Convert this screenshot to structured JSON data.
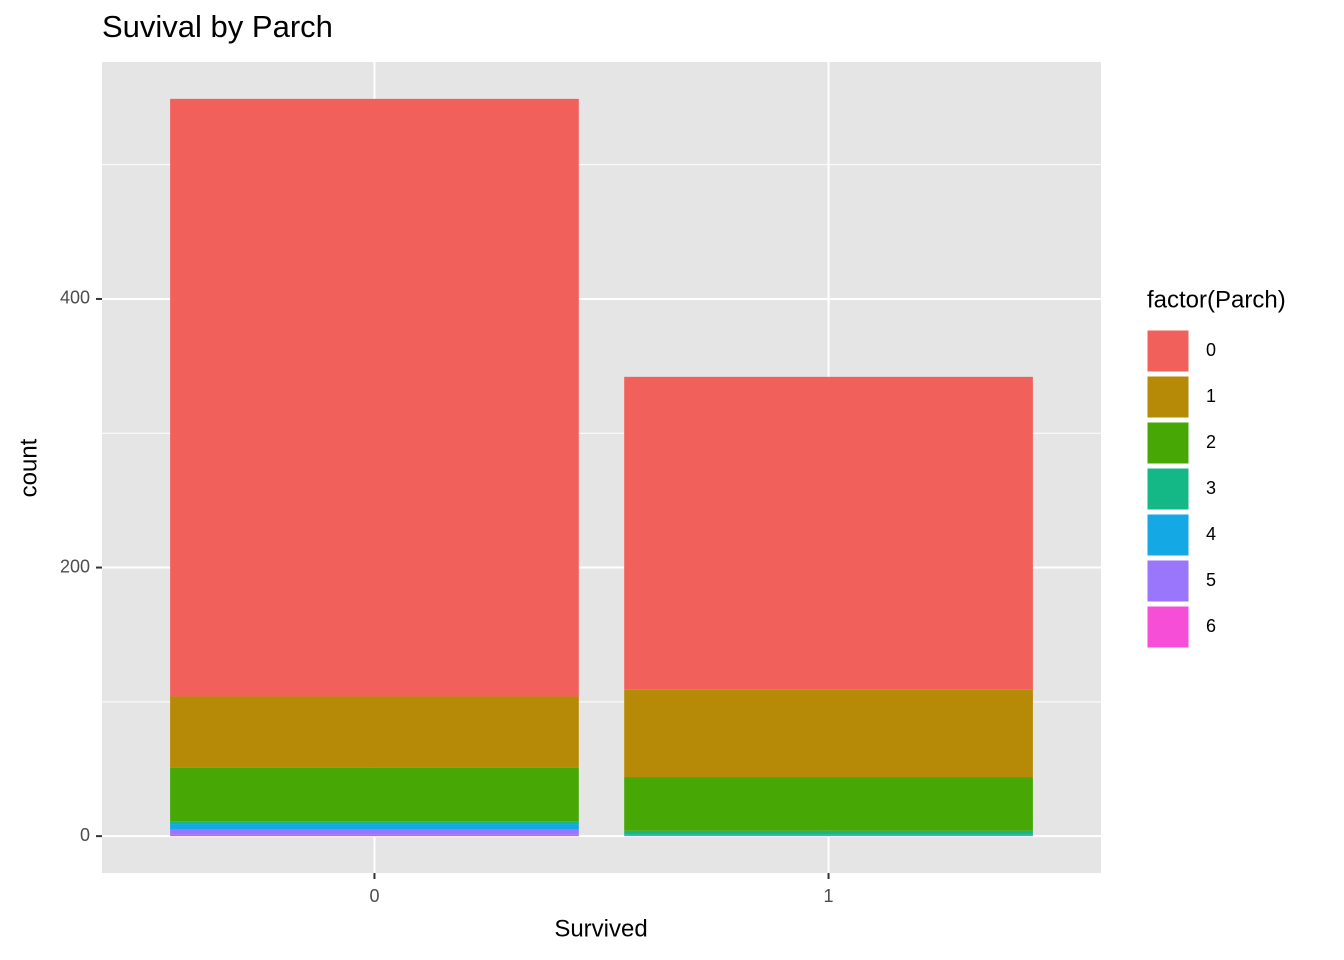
{
  "chart_data": {
    "type": "stacked_bar",
    "title": "Suvival by Parch",
    "x_label": "Survived",
    "y_label": "count",
    "legend_title": "factor(Parch)",
    "categories": [
      "0",
      "1"
    ],
    "series": [
      {
        "name": "0",
        "color": "#F2605C",
        "values": [
          445,
          233
        ]
      },
      {
        "name": "1",
        "color": "#B68A07",
        "values": [
          53,
          65
        ]
      },
      {
        "name": "2",
        "color": "#47A805",
        "values": [
          40,
          40
        ]
      },
      {
        "name": "3",
        "color": "#14B886",
        "values": [
          2,
          3
        ]
      },
      {
        "name": "4",
        "color": "#14A8E4",
        "values": [
          4,
          0
        ]
      },
      {
        "name": "5",
        "color": "#9A76FD",
        "values": [
          4,
          1
        ]
      },
      {
        "name": "6",
        "color": "#F64ED6",
        "values": [
          1,
          0
        ]
      }
    ],
    "ylim": [
      -27.45,
      576.45
    ],
    "yticks": [
      0,
      200,
      400
    ],
    "minor_yticks": [
      100,
      300,
      500
    ],
    "grid": true,
    "legend": "right"
  }
}
